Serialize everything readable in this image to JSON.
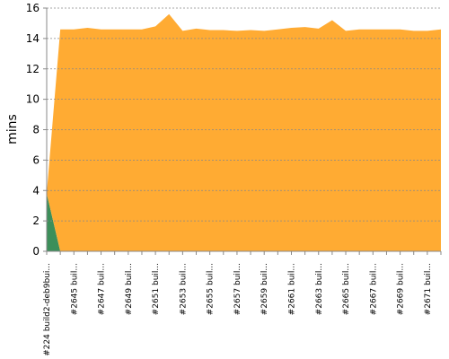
{
  "chart_data": {
    "type": "stacked-area",
    "y_label": "mins",
    "categories": [
      "#224 build2-deb9bui...",
      null,
      "#2645 buil...",
      null,
      "#2647 buil...",
      null,
      "#2649 buil...",
      null,
      "#2651 buil...",
      null,
      "#2653 buil...",
      null,
      "#2655 buil...",
      null,
      "#2657 buil...",
      null,
      "#2659 buil...",
      null,
      "#2661 buil...",
      null,
      "#2663 buil...",
      null,
      "#2665 buil...",
      null,
      "#2667 buil...",
      null,
      "#2669 buil...",
      null,
      "#2671 buil...",
      null
    ],
    "series": [
      {
        "color": "#3c8f5a",
        "values": [
          3.8,
          0,
          0,
          0,
          0,
          0,
          0,
          0,
          0,
          0,
          0,
          0,
          0,
          0,
          0,
          0,
          0,
          0,
          0,
          0,
          0,
          0,
          0,
          0,
          0,
          0,
          0,
          0,
          0,
          0
        ]
      },
      {
        "color": "#ffab33",
        "values": [
          0,
          14.6,
          14.6,
          14.7,
          14.6,
          14.6,
          14.6,
          14.6,
          14.8,
          15.6,
          14.5,
          14.65,
          14.55,
          14.55,
          14.5,
          14.55,
          14.5,
          14.6,
          14.7,
          14.75,
          14.65,
          15.2,
          14.5,
          14.6,
          14.6,
          14.6,
          14.6,
          14.5,
          14.5,
          14.6
        ]
      }
    ],
    "ylim": [
      0,
      16
    ],
    "yticks": [
      0,
      2,
      4,
      6,
      8,
      10,
      12,
      14,
      16
    ],
    "grid": true
  }
}
